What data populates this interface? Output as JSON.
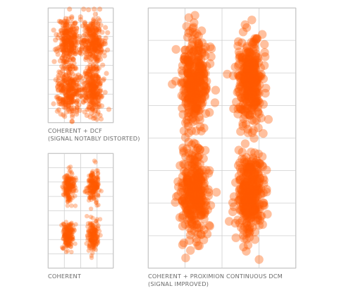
{
  "colors": {
    "point": "#ff5a00",
    "grid": "#cfcfcf",
    "frame": "#c9c9c9",
    "caption": "#6b6b6b"
  },
  "captions": {
    "dcf": {
      "line1": "COHERENT + DCF",
      "line2": "(SIGNAL NOTABLY DISTORTED)"
    },
    "coherent": {
      "line1": "COHERENT",
      "line2": ""
    },
    "proximion": {
      "line1": "COHERENT + PROXIMION CONTINUOUS DCM",
      "line2": "(SIGNAL IMPROVED)"
    }
  },
  "chart_data": [
    {
      "type": "scatter",
      "title": "",
      "xlim": [
        -2,
        2
      ],
      "ylim": [
        -2,
        2
      ],
      "grid": true,
      "clusters": [
        {
          "center": [
            -0.75,
            0.85
          ],
          "spread": [
            0.32,
            0.42
          ]
        },
        {
          "center": [
            0.75,
            0.85
          ],
          "spread": [
            0.32,
            0.42
          ]
        },
        {
          "center": [
            -0.75,
            -0.85
          ],
          "spread": [
            0.32,
            0.42
          ]
        },
        {
          "center": [
            0.75,
            -0.85
          ],
          "spread": [
            0.32,
            0.42
          ]
        }
      ],
      "caption": "COHERENT + DCF (SIGNAL NOTABLY DISTORTED)"
    },
    {
      "type": "scatter",
      "title": "",
      "xlim": [
        -2,
        2
      ],
      "ylim": [
        -2,
        2
      ],
      "grid": true,
      "clusters": [
        {
          "center": [
            -0.75,
            0.85
          ],
          "spread": [
            0.18,
            0.26
          ]
        },
        {
          "center": [
            0.75,
            0.85
          ],
          "spread": [
            0.18,
            0.26
          ]
        },
        {
          "center": [
            -0.75,
            -0.85
          ],
          "spread": [
            0.18,
            0.26
          ]
        },
        {
          "center": [
            0.75,
            -0.85
          ],
          "spread": [
            0.18,
            0.26
          ]
        }
      ],
      "caption": "COHERENT"
    },
    {
      "type": "scatter",
      "title": "",
      "xlim": [
        -2,
        2
      ],
      "ylim": [
        -2,
        2
      ],
      "grid": true,
      "clusters": [
        {
          "center": [
            -0.75,
            0.85
          ],
          "spread": [
            0.18,
            0.34
          ]
        },
        {
          "center": [
            0.75,
            0.85
          ],
          "spread": [
            0.18,
            0.34
          ]
        },
        {
          "center": [
            -0.75,
            -0.85
          ],
          "spread": [
            0.18,
            0.34
          ]
        },
        {
          "center": [
            0.75,
            -0.85
          ],
          "spread": [
            0.18,
            0.34
          ]
        }
      ],
      "caption": "COHERENT + PROXIMION CONTINUOUS DCM (SIGNAL IMPROVED)"
    }
  ]
}
